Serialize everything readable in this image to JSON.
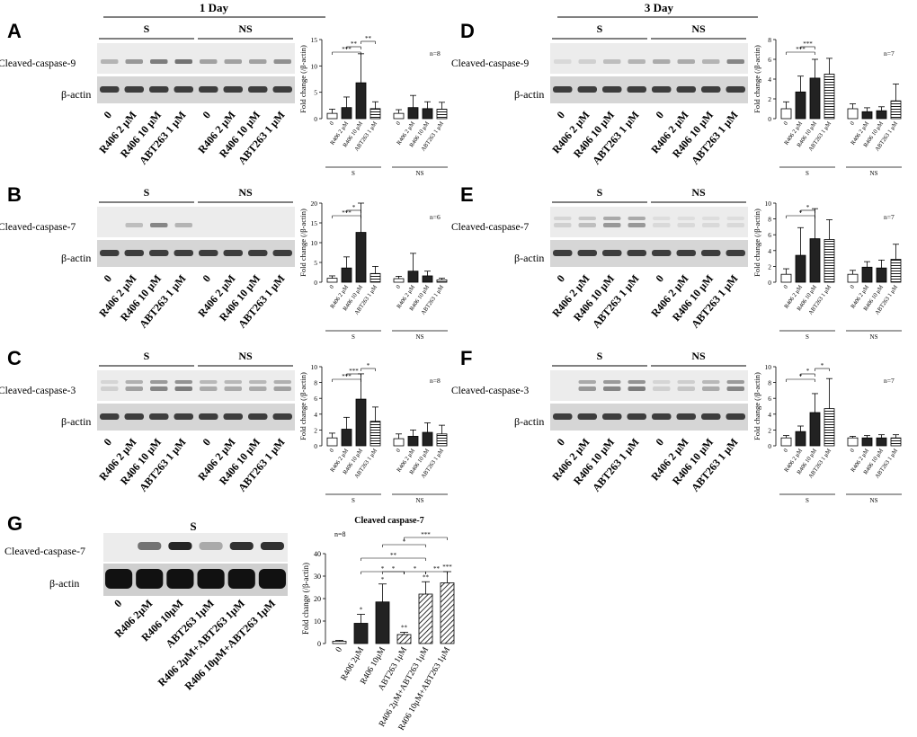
{
  "figure": {
    "header_left": "1 Day",
    "header_right": "3 Day",
    "group_labels": {
      "sensitive": "S",
      "nonsensitive": "NS"
    },
    "loading_control": "β-actin",
    "ylabel": "Fold change (/β-actin)",
    "lane_labels": [
      "0",
      "R406 2 μM",
      "R406 10 μM",
      "ABT263 1 μM"
    ],
    "small_labels": [
      "0",
      "R406 2 μM",
      "R406 10 μM",
      "ABT263 1 μM"
    ]
  },
  "panels": [
    {
      "id": "A",
      "title": "Cleaved-caspase-9",
      "n": "n=8"
    },
    {
      "id": "B",
      "title": "Cleaved-caspase-7",
      "n": "n=6"
    },
    {
      "id": "C",
      "title": "Cleaved-caspase-3",
      "n": "n=8"
    },
    {
      "id": "D",
      "title": "Cleaved-caspase-9",
      "n": "n=7"
    },
    {
      "id": "E",
      "title": "Cleaved-caspase-7",
      "n": "n=7"
    },
    {
      "id": "F",
      "title": "Cleaved-caspase-3",
      "n": "n=7"
    },
    {
      "id": "G",
      "title": "Cleaved-caspase-7",
      "n": "n=8",
      "chart_title": "Cleaved caspase-7"
    }
  ],
  "g_lane_labels": [
    "0",
    "R406 2μM",
    "R406 10μM",
    "ABT263 1μM",
    "R406 2μM+ABT263 1μM",
    "R406 10μM+ABT263 1μM"
  ],
  "g_bar_labels": [
    "0",
    "R406 2μM",
    "R406 10μM",
    "ABT263 1μM",
    "R406 2μM+ABT263 1μM",
    "R406 10μM+ABT263 1μM"
  ],
  "chart_data": [
    {
      "panel": "A",
      "type": "bar",
      "ylim": [
        0,
        15
      ],
      "yticks": [
        0,
        5,
        10,
        15
      ],
      "ylabel": "Fold change (/β-actin)",
      "categories": [
        "0",
        "R406 2 μM",
        "R406 10 μM",
        "ABT263 1 μM"
      ],
      "series": [
        {
          "name": "S",
          "values": [
            1,
            2.1,
            6.8,
            1.9
          ],
          "errors": [
            0.8,
            2,
            5.5,
            1.3
          ]
        },
        {
          "name": "NS",
          "values": [
            1,
            2.1,
            1.9,
            1.8
          ],
          "errors": [
            0.7,
            2.3,
            1.3,
            1.3
          ]
        }
      ],
      "significance": [
        "***",
        "**",
        "**"
      ],
      "n": "n=8"
    },
    {
      "panel": "B",
      "type": "bar",
      "ylim": [
        0,
        20
      ],
      "yticks": [
        0,
        5,
        10,
        15,
        20
      ],
      "ylabel": "Fold change (/β-actin)",
      "categories": [
        "0",
        "R406 2 μM",
        "R406 10 μM",
        "ABT263 1 μM"
      ],
      "series": [
        {
          "name": "S",
          "values": [
            1,
            3.6,
            12.6,
            2.2
          ],
          "errors": [
            0.6,
            2.8,
            10,
            1.8
          ]
        },
        {
          "name": "NS",
          "values": [
            0.9,
            2.8,
            1.6,
            0.6
          ],
          "errors": [
            0.6,
            4.5,
            1.2,
            0.4
          ]
        }
      ],
      "significance": [
        "***",
        "*"
      ],
      "n": "n=6"
    },
    {
      "panel": "C",
      "type": "bar",
      "ylim": [
        0,
        10
      ],
      "yticks": [
        0,
        2,
        4,
        6,
        8,
        10
      ],
      "ylabel": "Fold change (/β-actin)",
      "categories": [
        "0",
        "R406 2 μM",
        "R406 10 μM",
        "ABT263 1 μM"
      ],
      "series": [
        {
          "name": "S",
          "values": [
            1,
            2.1,
            5.9,
            3.1
          ],
          "errors": [
            0.6,
            1.5,
            3.2,
            1.8
          ]
        },
        {
          "name": "NS",
          "values": [
            0.9,
            1.2,
            1.7,
            1.5
          ],
          "errors": [
            0.6,
            0.8,
            1.2,
            1.1
          ]
        }
      ],
      "significance": [
        "***",
        "***",
        "*"
      ],
      "n": "n=8"
    },
    {
      "panel": "D",
      "type": "bar",
      "ylim": [
        0,
        8
      ],
      "yticks": [
        0,
        2,
        4,
        6,
        8
      ],
      "ylabel": "Fold change (/β-actin)",
      "categories": [
        "0",
        "R406 2 μM",
        "R406 10 μM",
        "ABT263 1 μM"
      ],
      "series": [
        {
          "name": "S",
          "values": [
            1,
            2.7,
            4.1,
            4.5
          ],
          "errors": [
            0.7,
            1.6,
            1.9,
            1.6
          ]
        },
        {
          "name": "NS",
          "values": [
            1,
            0.7,
            0.8,
            1.8
          ],
          "errors": [
            0.5,
            0.4,
            0.4,
            1.7
          ]
        }
      ],
      "significance": [
        "***",
        "***"
      ],
      "n": "n=7"
    },
    {
      "panel": "E",
      "type": "bar",
      "ylim": [
        0,
        10
      ],
      "yticks": [
        0,
        2,
        4,
        6,
        8,
        10
      ],
      "ylabel": "Fold change (/β-actin)",
      "categories": [
        "0",
        "R406 2 μM",
        "R406 10 μM",
        "ABT263 1 μM"
      ],
      "series": [
        {
          "name": "S",
          "values": [
            1,
            3.4,
            5.5,
            5.4
          ],
          "errors": [
            0.7,
            3.5,
            3.8,
            2.5
          ]
        },
        {
          "name": "NS",
          "values": [
            1,
            1.9,
            1.8,
            2.9
          ],
          "errors": [
            0.5,
            0.7,
            1,
            1.9
          ]
        }
      ],
      "significance": [
        "*",
        "*"
      ],
      "n": "n=7"
    },
    {
      "panel": "F",
      "type": "bar",
      "ylim": [
        0,
        10
      ],
      "yticks": [
        0,
        2,
        4,
        6,
        8,
        10
      ],
      "ylabel": "Fold change (/β-actin)",
      "categories": [
        "0",
        "R406 2 μM",
        "R406 10 μM",
        "ABT263 1 μM"
      ],
      "series": [
        {
          "name": "S",
          "values": [
            1,
            1.8,
            4.2,
            4.7
          ],
          "errors": [
            0.3,
            0.7,
            2.4,
            3.8
          ]
        },
        {
          "name": "NS",
          "values": [
            1,
            1,
            1,
            1
          ],
          "errors": [
            0.2,
            0.3,
            0.4,
            0.4
          ]
        }
      ],
      "significance": [
        "*",
        "*",
        "*"
      ],
      "n": "n=7"
    },
    {
      "panel": "G",
      "type": "bar",
      "title": "Cleaved caspase-7",
      "ylim": [
        0,
        40
      ],
      "yticks": [
        0,
        10,
        20,
        30,
        40
      ],
      "ylabel": "Fold change (/β-actin)",
      "categories": [
        "0",
        "R406 2μM",
        "R406 10μM",
        "ABT263 1μM",
        "R406 2μM+ABT263 1μM",
        "R406 10μM+ABT263 1μM"
      ],
      "series": [
        {
          "name": "S",
          "values": [
            1,
            9,
            18.5,
            4,
            22,
            27
          ],
          "errors": [
            0.4,
            4,
            8,
            1,
            5.5,
            5
          ]
        }
      ],
      "bar_stars": [
        "",
        "*",
        "*",
        "**",
        "**",
        "***"
      ],
      "significance": [
        "*",
        "*",
        "*",
        "**",
        "**",
        "*",
        "***"
      ],
      "n": "n=8"
    }
  ]
}
